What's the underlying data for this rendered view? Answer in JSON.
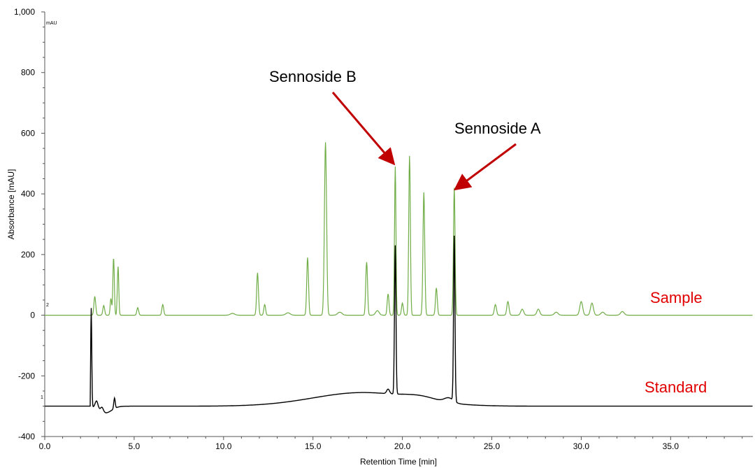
{
  "chart_data": {
    "type": "line",
    "title": "",
    "xlabel": "Retention Time [min]",
    "ylabel": "Absorbance [mAU]",
    "y_unit_label": "mAU",
    "xlim": [
      0,
      39.6
    ],
    "ylim": [
      -400,
      1000
    ],
    "x_ticks": [
      0,
      5,
      10,
      15,
      20,
      25,
      30,
      35
    ],
    "x_tick_labels": [
      "0.0",
      "5.0",
      "10.0",
      "15.0",
      "20.0",
      "25.0",
      "30.0",
      "35.0"
    ],
    "y_ticks": [
      -400,
      -200,
      0,
      200,
      400,
      600,
      800,
      1000
    ],
    "y_tick_labels": [
      "-400",
      "-200",
      "0",
      "200",
      "400",
      "600",
      "800",
      "1,000"
    ],
    "grid": false,
    "series_trace_markers": [
      "2",
      "1"
    ],
    "series": [
      {
        "name": "Sample",
        "color": "#70ad47",
        "label_color": "#e00000",
        "baseline": 0,
        "peaks": [
          [
            2.8,
            62,
            0.05
          ],
          [
            3.3,
            32,
            0.05
          ],
          [
            3.7,
            55,
            0.04
          ],
          [
            3.85,
            190,
            0.04
          ],
          [
            4.1,
            160,
            0.04
          ],
          [
            5.2,
            25,
            0.05
          ],
          [
            6.6,
            35,
            0.05
          ],
          [
            11.9,
            140,
            0.05
          ],
          [
            12.3,
            35,
            0.05
          ],
          [
            14.7,
            190,
            0.05
          ],
          [
            15.7,
            570,
            0.06
          ],
          [
            18.0,
            175,
            0.05
          ],
          [
            18.6,
            15,
            0.1
          ],
          [
            19.2,
            70,
            0.05
          ],
          [
            19.6,
            490,
            0.04
          ],
          [
            20.0,
            40,
            0.05
          ],
          [
            20.4,
            525,
            0.045
          ],
          [
            21.2,
            405,
            0.05
          ],
          [
            21.9,
            90,
            0.05
          ],
          [
            22.9,
            420,
            0.045
          ],
          [
            25.2,
            35,
            0.06
          ],
          [
            25.9,
            45,
            0.06
          ],
          [
            26.7,
            20,
            0.08
          ],
          [
            27.6,
            20,
            0.08
          ],
          [
            28.6,
            10,
            0.1
          ],
          [
            30.0,
            45,
            0.08
          ],
          [
            30.6,
            40,
            0.08
          ],
          [
            31.2,
            10,
            0.1
          ],
          [
            32.3,
            12,
            0.1
          ],
          [
            16.5,
            10,
            0.12
          ],
          [
            13.6,
            8,
            0.12
          ],
          [
            10.5,
            6,
            0.12
          ]
        ]
      },
      {
        "name": "Standard",
        "color": "#000000",
        "label_color": "#e00000",
        "baseline": -300,
        "peaks": [
          [
            2.6,
            325,
            0.03
          ],
          [
            2.9,
            25,
            0.08
          ],
          [
            3.2,
            15,
            0.08
          ],
          [
            3.9,
            35,
            0.04
          ],
          [
            19.2,
            15,
            0.08
          ],
          [
            19.6,
            490,
            0.04
          ],
          [
            22.9,
            545,
            0.04
          ]
        ],
        "humps": [
          [
            17.8,
            45,
            2.8
          ],
          [
            21.0,
            12,
            0.9
          ],
          [
            3.4,
            -22,
            0.35
          ],
          [
            22.6,
            15,
            0.25
          ]
        ]
      }
    ],
    "annotations": [
      {
        "text": "Sennoside B",
        "target_x": 19.6,
        "target_y": 500,
        "arrow_color": "#c00000"
      },
      {
        "text": "Sennoside A",
        "target_x": 22.9,
        "target_y": 415,
        "arrow_color": "#c00000"
      }
    ]
  }
}
